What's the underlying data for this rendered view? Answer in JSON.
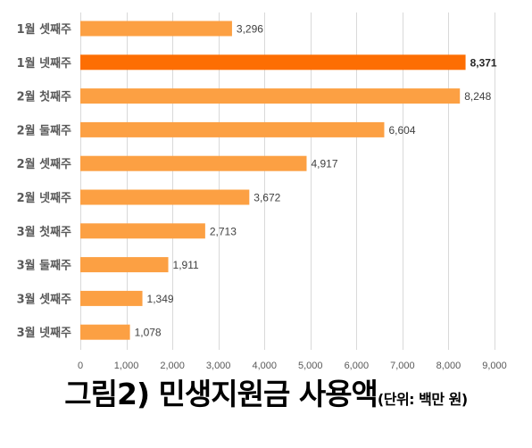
{
  "chart_data": {
    "type": "bar",
    "orientation": "horizontal",
    "title": "",
    "xlabel": "",
    "ylabel": "",
    "categories": [
      "1월 셋째주",
      "1월 넷째주",
      "2월 첫째주",
      "2월 둘째주",
      "2월 셋째주",
      "2월 넷째주",
      "3월 첫째주",
      "3월 둘째주",
      "3월 셋째주",
      "3월 넷째주"
    ],
    "values": [
      3296,
      8371,
      8248,
      6604,
      4917,
      3672,
      2713,
      1911,
      1349,
      1078
    ],
    "value_labels": [
      "3,296",
      "8,371",
      "8,248",
      "6,604",
      "4,917",
      "3,672",
      "2,713",
      "1,911",
      "1,349",
      "1,078"
    ],
    "highlight_index": 1,
    "xlim": [
      0,
      9000
    ],
    "xticks": [
      0,
      1000,
      2000,
      3000,
      4000,
      5000,
      6000,
      7000,
      8000,
      9000
    ],
    "xtick_labels": [
      "0",
      "1,000",
      "2,000",
      "3,000",
      "4,000",
      "5,000",
      "6,000",
      "7,000",
      "8,000",
      "9,000"
    ],
    "grid": "vertical",
    "legend": "none",
    "colors": {
      "bar": "#fca043",
      "bar_highlight": "#fd6e03",
      "grid": "#d9d9d9",
      "text": "#595959"
    }
  },
  "caption": {
    "main": "그림2) 민생지원금 사용액",
    "unit": "(단위: 백만 원)"
  }
}
